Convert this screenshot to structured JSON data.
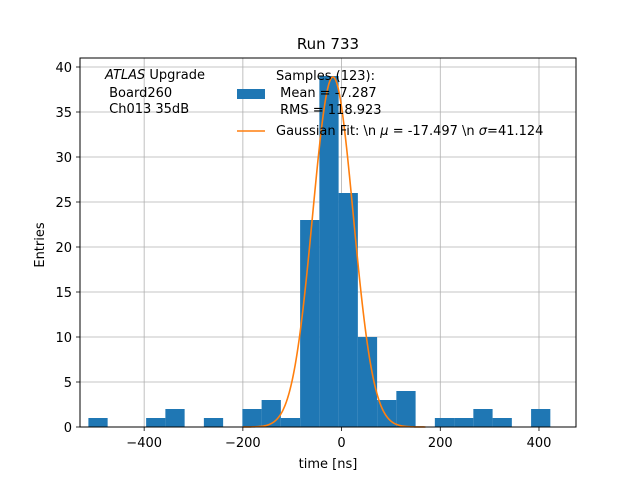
{
  "chart_data": {
    "type": "bar",
    "title": "Run 733",
    "xlabel": "time [ns]",
    "ylabel": "Entries",
    "xlim": [
      -530,
      475
    ],
    "ylim": [
      0,
      41
    ],
    "grid": true,
    "xticks": [
      -400,
      -200,
      0,
      200,
      400
    ],
    "xtick_labels": [
      "−400",
      "−200",
      "0",
      "200",
      "400"
    ],
    "yticks": [
      0,
      5,
      10,
      15,
      20,
      25,
      30,
      35,
      40
    ],
    "ytick_labels": [
      "0",
      "5",
      "10",
      "15",
      "20",
      "25",
      "30",
      "35",
      "40"
    ],
    "colors": {
      "histogram": "#1f77b4",
      "fit": "#ff7f0e",
      "grid": "#b0b0b0"
    },
    "histogram": {
      "bins": [
        {
          "x0": -513,
          "x1": -474,
          "value": 1
        },
        {
          "x0": -396,
          "x1": -357,
          "value": 1
        },
        {
          "x0": -357,
          "x1": -318,
          "value": 2
        },
        {
          "x0": -279,
          "x1": -240,
          "value": 1
        },
        {
          "x0": -201,
          "x1": -162,
          "value": 2
        },
        {
          "x0": -162,
          "x1": -123,
          "value": 3
        },
        {
          "x0": -123,
          "x1": -84,
          "value": 1
        },
        {
          "x0": -84,
          "x1": -45,
          "value": 23
        },
        {
          "x0": -45,
          "x1": -6,
          "value": 39
        },
        {
          "x0": -6,
          "x1": 33,
          "value": 26
        },
        {
          "x0": 33,
          "x1": 72,
          "value": 10
        },
        {
          "x0": 72,
          "x1": 111,
          "value": 3
        },
        {
          "x0": 111,
          "x1": 150,
          "value": 4
        },
        {
          "x0": 189,
          "x1": 228,
          "value": 1
        },
        {
          "x0": 228,
          "x1": 267,
          "value": 1
        },
        {
          "x0": 267,
          "x1": 306,
          "value": 2
        },
        {
          "x0": 306,
          "x1": 345,
          "value": 1
        },
        {
          "x0": 384,
          "x1": 423,
          "value": 2
        }
      ]
    },
    "gaussian_fit": {
      "amplitude": 38.9,
      "mu": -17.497,
      "sigma": 41.124,
      "x_range": [
        -200,
        170
      ]
    },
    "annotation": {
      "line1_italic": "ATLAS",
      "line1_rest": " Upgrade",
      "line2": " Board260",
      "line3": " Ch013 35dB"
    },
    "legend": {
      "placement": "top-right",
      "entries": [
        {
          "label_lines": [
            "Samples (123):",
            " Mean = -7.287",
            " RMS = 118.923"
          ]
        },
        {
          "label_parts": [
            "Gaussian Fit: \\n ",
            "μ",
            " = -17.497 \\n ",
            "σ",
            "=41.124"
          ]
        }
      ]
    }
  }
}
